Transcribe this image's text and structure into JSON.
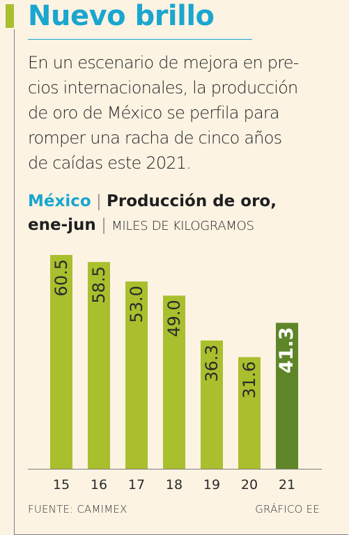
{
  "header": {
    "title": "Nuevo brillo",
    "lede_lines": [
      "En un escenario de mejora en pre-",
      "cios internacionales, la producción",
      "de oro de México se perfila para",
      "romper una racha de cinco años",
      "de caídas este 2021."
    ]
  },
  "subtitle": {
    "country": "México",
    "separator": "|",
    "metric_line1": "Producción de oro,",
    "metric_line2": "ene-jun",
    "units": "MILES DE KILOGRAMOS"
  },
  "footer": {
    "source": "FUENTE: CAMIMEX",
    "credit": "GRÁFICO EE"
  },
  "colors": {
    "accent": "#1aa6cf",
    "bar": "#a9bf2e",
    "bar_highlight": "#5e8629",
    "background": "#fcf3e3"
  },
  "chart_data": {
    "type": "bar",
    "title": "Producción de oro, ene-jun",
    "ylabel": "MILES DE KILOGRAMOS",
    "categories": [
      "15",
      "16",
      "17",
      "18",
      "19",
      "20",
      "21"
    ],
    "values": [
      60.5,
      58.5,
      53.0,
      49.0,
      36.3,
      31.6,
      41.3
    ],
    "value_labels": [
      "60.5",
      "58.5",
      "53.0",
      "49.0",
      "36.3",
      "31.6",
      "41.3"
    ],
    "highlight_index": 6,
    "ylim": [
      0,
      60.5
    ],
    "grid": false
  }
}
